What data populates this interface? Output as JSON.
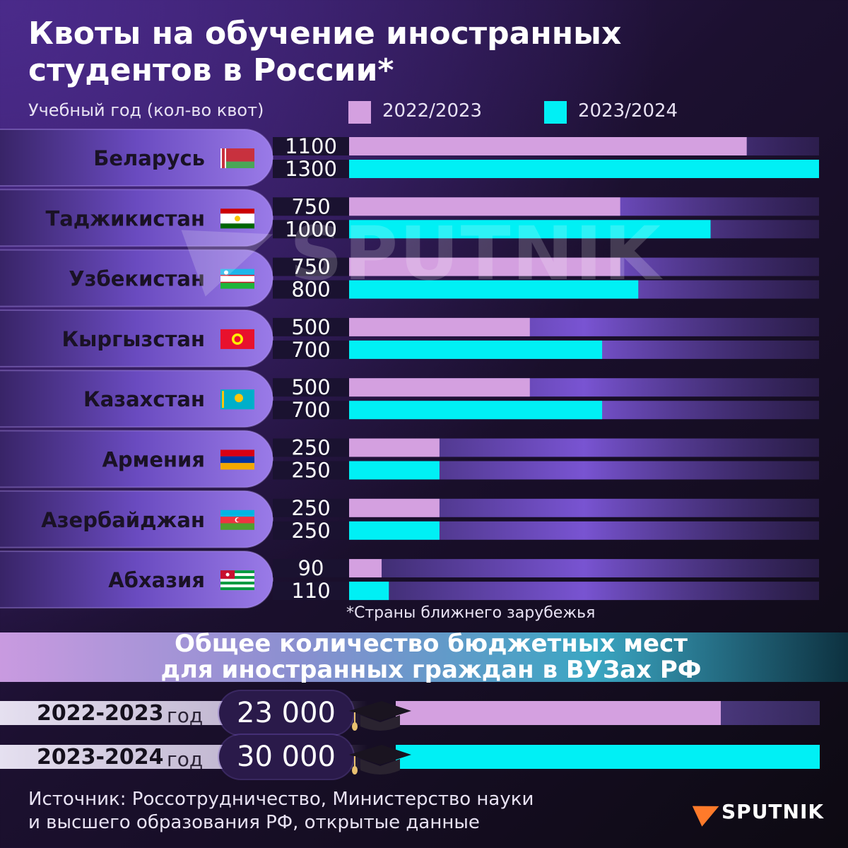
{
  "title": {
    "line1": "Квоты на обучение иностранных",
    "line2": "студентов в России*"
  },
  "legend": {
    "label": "Учебный год (кол-во квот)",
    "items": [
      {
        "name": "2022/2023",
        "color": "#d4a0e0"
      },
      {
        "name": "2023/2024",
        "color": "#00f0f5"
      }
    ]
  },
  "watermark": "SPUTNIK",
  "chart_data": [
    {
      "type": "bar",
      "orientation": "horizontal",
      "title": "Квоты на обучение иностранных студентов в России*",
      "categories": [
        "Беларусь",
        "Таджикистан",
        "Узбекистан",
        "Кыргызстан",
        "Казахстан",
        "Армения",
        "Азербайджан",
        "Абхазия"
      ],
      "flags": [
        "belarus-flag-icon",
        "tajikistan-flag-icon",
        "uzbekistan-flag-icon",
        "kyrgyzstan-flag-icon",
        "kazakhstan-flag-icon",
        "armenia-flag-icon",
        "azerbaijan-flag-icon",
        "abkhazia-flag-icon"
      ],
      "series": [
        {
          "name": "2022/2023",
          "color": "#d4a0e0",
          "values": [
            1100,
            750,
            750,
            500,
            500,
            250,
            250,
            90
          ]
        },
        {
          "name": "2023/2024",
          "color": "#00f0f5",
          "values": [
            1300,
            1000,
            800,
            700,
            700,
            250,
            250,
            110
          ]
        }
      ],
      "xlim": [
        0,
        1300
      ],
      "grid": false,
      "legend_position": "top"
    },
    {
      "type": "bar",
      "orientation": "horizontal",
      "title": "Общее количество бюджетных мест для иностранных граждан в ВУЗах РФ",
      "categories": [
        "2022-2023",
        "2023-2024"
      ],
      "series": [
        {
          "values": [
            23000,
            30000
          ],
          "colors": [
            "#d4a0e0",
            "#00f0f5"
          ]
        }
      ],
      "value_labels": [
        "23 000",
        "30 000"
      ],
      "xlim": [
        0,
        30000
      ],
      "grid": false
    }
  ],
  "footnote": "*Страны ближнего зарубежья",
  "totals": {
    "title_line1": "Общее количество бюджетных мест",
    "title_line2": "для иностранных граждан в ВУЗах РФ",
    "year_suffix": "год",
    "icon": "graduation-cap-icon"
  },
  "source": {
    "line1": "Источник: Россотрудничество, Министерство науки",
    "line2": "и высшего образования РФ, открытые данные"
  },
  "brand": "SPUTNIK"
}
